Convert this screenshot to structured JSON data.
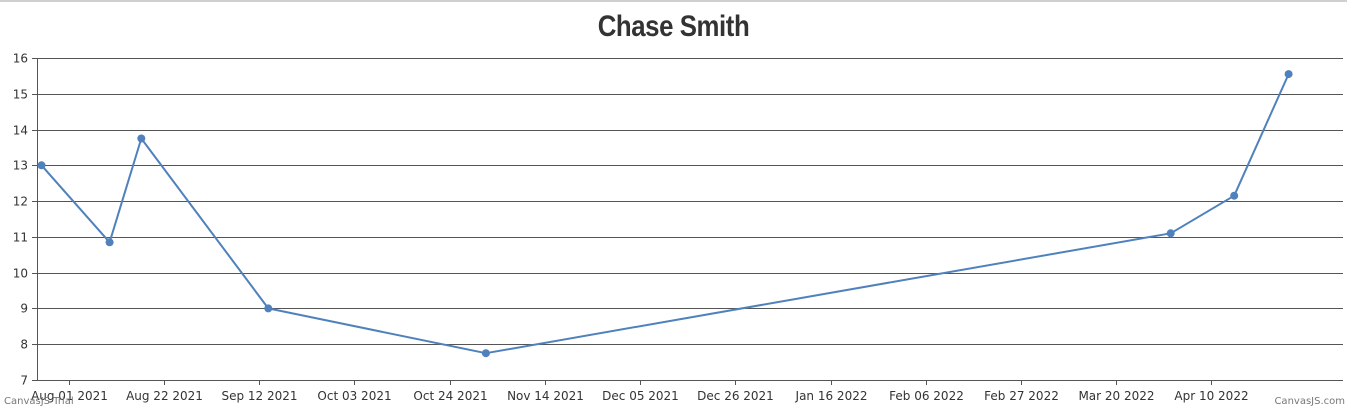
{
  "chart_data": {
    "type": "line",
    "title": "Chase Smith",
    "xlabel": "",
    "ylabel": "",
    "ylim": [
      7,
      16
    ],
    "yticks": [
      7,
      8,
      9,
      10,
      11,
      12,
      13,
      14,
      15,
      16
    ],
    "xlim": [
      "2021-07-25",
      "2022-05-09"
    ],
    "xtick_labels": [
      "Aug 01 2021",
      "Aug 22 2021",
      "Sep 12 2021",
      "Oct 03 2021",
      "Oct 24 2021",
      "Nov 14 2021",
      "Dec 05 2021",
      "Dec 26 2021",
      "Jan 16 2022",
      "Feb 06 2022",
      "Feb 27 2022",
      "Mar 20 2022",
      "Apr 10 2022"
    ],
    "xtick_dates": [
      "2021-08-01",
      "2021-08-22",
      "2021-09-12",
      "2021-10-03",
      "2021-10-24",
      "2021-11-14",
      "2021-12-05",
      "2021-12-26",
      "2022-01-16",
      "2022-02-06",
      "2022-02-27",
      "2022-03-20",
      "2022-04-10"
    ],
    "grid": true,
    "line_color": "#4f81bc",
    "points": [
      {
        "x": "2021-07-26",
        "y": 13.0
      },
      {
        "x": "2021-08-10",
        "y": 10.85
      },
      {
        "x": "2021-08-17",
        "y": 13.75
      },
      {
        "x": "2021-09-14",
        "y": 9.0
      },
      {
        "x": "2021-11-01",
        "y": 7.75
      },
      {
        "x": "2022-04-01",
        "y": 11.1
      },
      {
        "x": "2022-04-15",
        "y": 12.15
      },
      {
        "x": "2022-04-27",
        "y": 15.55
      }
    ]
  },
  "credits": {
    "left": "CanvasJS Trial",
    "right": "CanvasJS.com"
  }
}
